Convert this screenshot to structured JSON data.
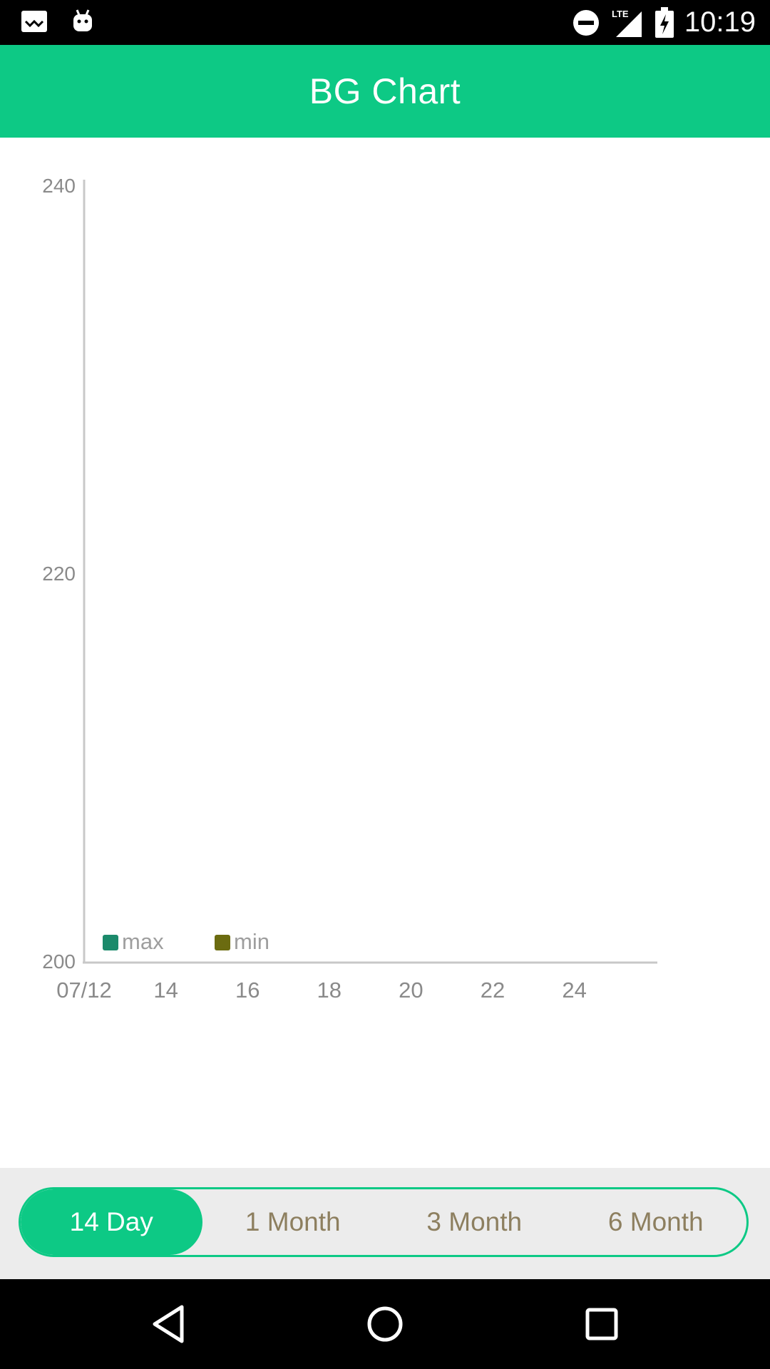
{
  "status_bar": {
    "time": "10:19",
    "network": "LTE",
    "left_icons": [
      "notification-icon",
      "android-icon"
    ],
    "right_icons": [
      "do-not-disturb-icon",
      "signal-icon",
      "battery-charging-icon"
    ]
  },
  "app_bar": {
    "title": "BG Chart",
    "color": "#0dc985"
  },
  "chart_data": {
    "type": "line",
    "title": "",
    "xlabel": "",
    "ylabel": "",
    "x_tick_labels": [
      "07/12",
      "14",
      "16",
      "18",
      "20",
      "22",
      "24"
    ],
    "y_tick_labels": [
      "240",
      "220",
      "200"
    ],
    "ylim": [
      200,
      240
    ],
    "series": [
      {
        "name": "max",
        "color": "#1b8a6b",
        "values": []
      },
      {
        "name": "min",
        "color": "#6b6b10",
        "values": []
      }
    ],
    "legend_position": "bottom-left",
    "grid": false
  },
  "range_selector": {
    "options": [
      "14 Day",
      "1 Month",
      "3 Month",
      "6 Month"
    ],
    "selected": "14 Day"
  },
  "nav_bar": {
    "buttons": [
      "back-icon",
      "home-icon",
      "recents-icon"
    ]
  }
}
